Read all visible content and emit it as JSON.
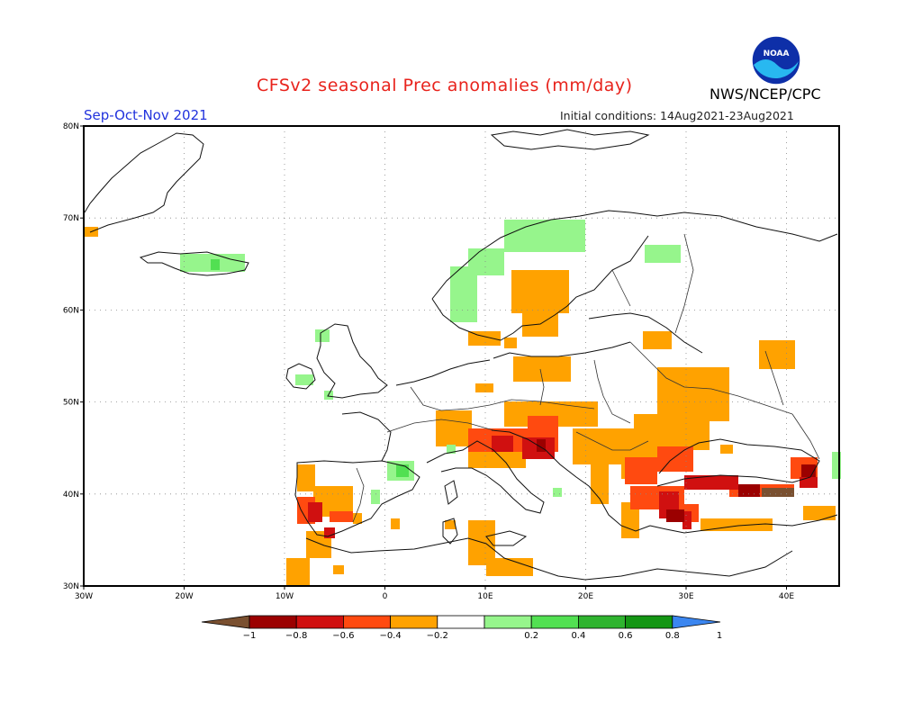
{
  "title": "CFSv2 seasonal Prec anomalies (mm/day)",
  "season": "Sep-Oct-Nov 2021",
  "initial_conditions": "Initial conditions: 14Aug2021-23Aug2021",
  "organization": "NWS/NCEP/CPC",
  "logo_text": "NOAA",
  "axes": {
    "lon_ticks": [
      "30W",
      "20W",
      "10W",
      "0",
      "10E",
      "20E",
      "30E",
      "40E"
    ],
    "lat_ticks": [
      "30N",
      "40N",
      "50N",
      "60N",
      "70N",
      "80N"
    ]
  },
  "colorbar": {
    "labels": [
      "−1",
      "−0.8",
      "−0.6",
      "−0.4",
      "−0.2",
      "0.2",
      "0.4",
      "0.6",
      "0.8",
      "1"
    ],
    "colors": {
      "below_min": "#7a5030",
      "bins": [
        "#9b0000",
        "#d01010",
        "#ff4a10",
        "#ffa200",
        "#ffffff",
        "#96f58c",
        "#52e052",
        "#2fb42f",
        "#149614"
      ],
      "above_max": "#3b86f0"
    }
  },
  "colors": {
    "title": "#e8231c",
    "season": "#2233dd",
    "coast": "#111111",
    "border": "#333333"
  }
}
